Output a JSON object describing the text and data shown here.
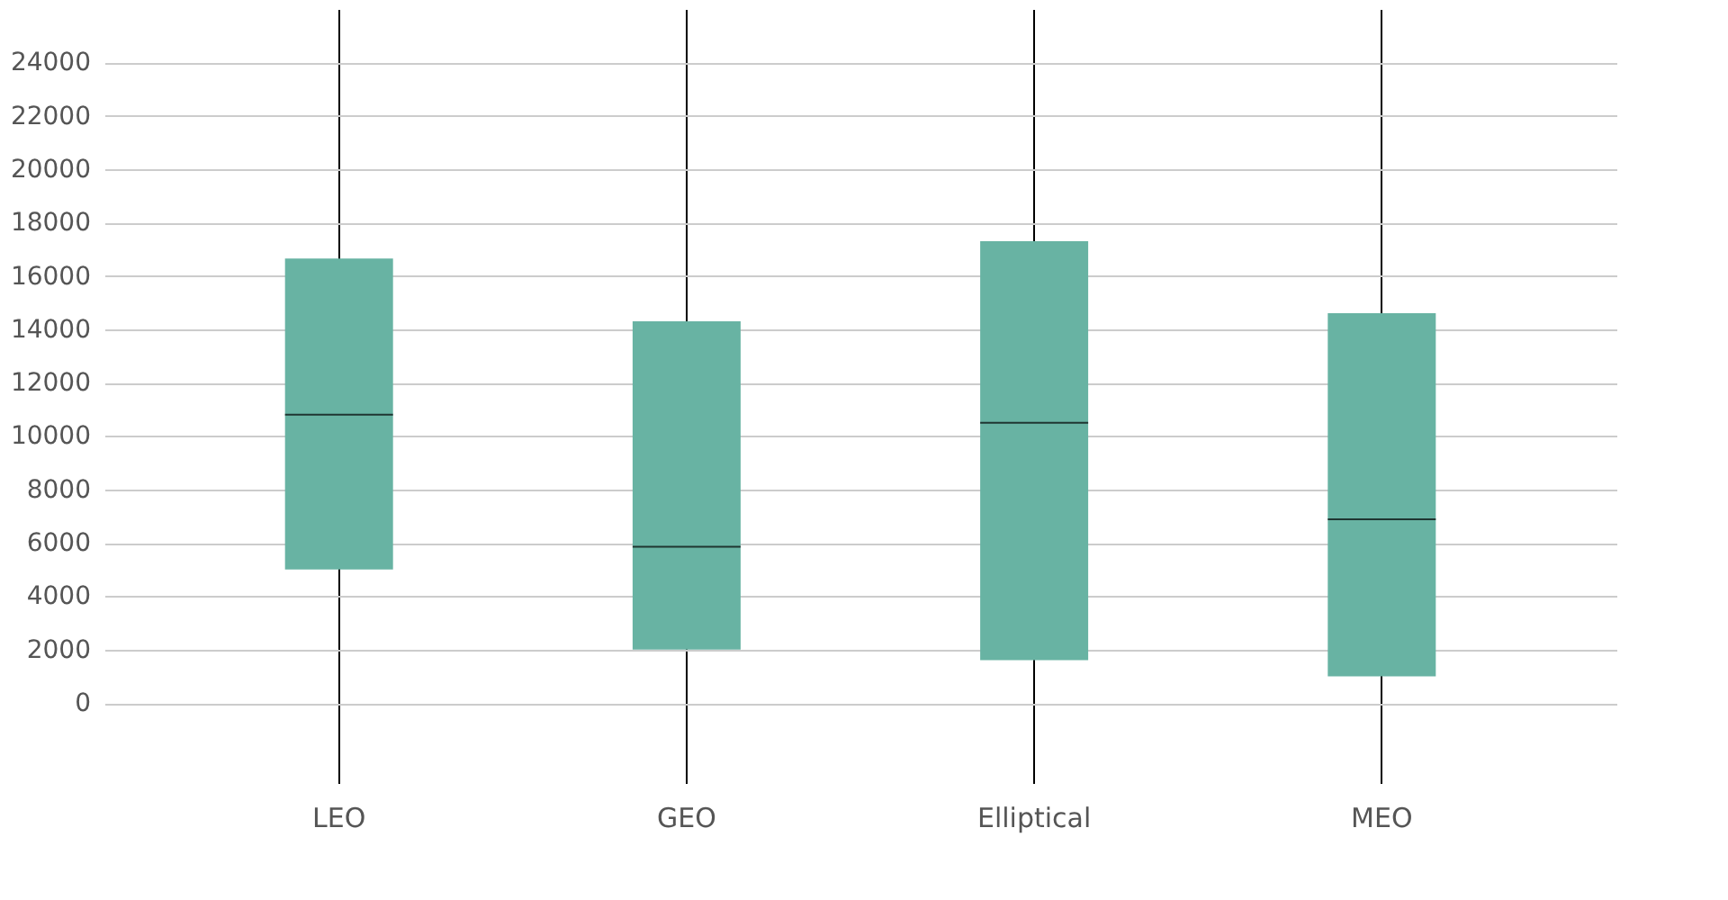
{
  "chart_data": {
    "type": "box",
    "categories": [
      "LEO",
      "GEO",
      "Elliptical",
      "MEO"
    ],
    "boxes": [
      {
        "low": 5000,
        "q1": 5000,
        "median": 10800,
        "q3": 16650,
        "high": 16650
      },
      {
        "low": 2000,
        "q1": 2000,
        "median": 5850,
        "q3": 14300,
        "high": 14300
      },
      {
        "low": 1600,
        "q1": 1600,
        "median": 10500,
        "q3": 17300,
        "high": 17300
      },
      {
        "low": 1000,
        "q1": 1000,
        "median": 6880,
        "q3": 14600,
        "high": 14600
      }
    ],
    "color": "#68b3a3",
    "ylim": [
      -3000,
      26000
    ],
    "yticks": [
      0,
      2000,
      4000,
      6000,
      8000,
      10000,
      12000,
      14000,
      16000,
      18000,
      20000,
      22000,
      24000
    ],
    "grid": true
  }
}
